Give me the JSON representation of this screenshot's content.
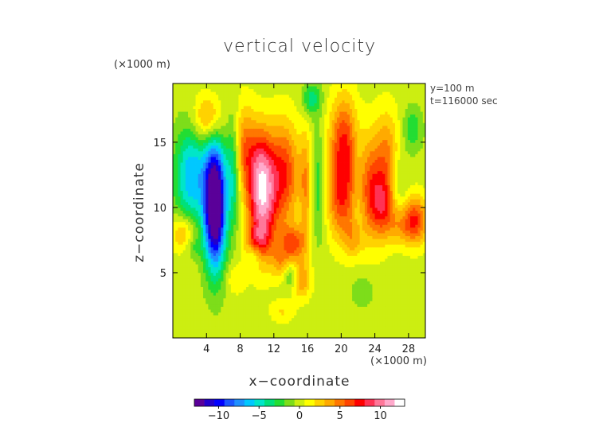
{
  "chart_data": {
    "type": "heatmap",
    "title": "vertical velocity",
    "xlabel": "x−coordinate",
    "ylabel": "z−coordinate",
    "x_unit": "(×1000 m)",
    "y_unit": "(×1000 m)",
    "info": [
      "y=100  m",
      "t=116000  sec"
    ],
    "xlim": [
      0,
      30
    ],
    "ylim": [
      0,
      19.5
    ],
    "xticks": [
      4,
      8,
      12,
      16,
      20,
      24,
      28
    ],
    "yticks": [
      5,
      10,
      15
    ],
    "colorbar": {
      "range": [
        -13,
        13
      ],
      "ticks": [
        -10,
        -5,
        0,
        5,
        10
      ],
      "tick_labels": [
        "−10",
        "−5",
        "0",
        "5",
        "10"
      ],
      "colors": [
        "#5a0099",
        "#2200cc",
        "#0000ff",
        "#1a55ff",
        "#1e90ff",
        "#00c8ff",
        "#00e6c8",
        "#00e07a",
        "#22dd33",
        "#7ddd1a",
        "#ccee11",
        "#ffff00",
        "#ffd200",
        "#ffaa00",
        "#ff7700",
        "#ff4400",
        "#ff0000",
        "#ff3355",
        "#ff7799",
        "#ffaacc",
        "#ffffff"
      ]
    },
    "features": [
      {
        "x": 5.0,
        "z": 10.2,
        "sx": 0.9,
        "sz": 3.3,
        "w": -17
      },
      {
        "x": 2.2,
        "z": 12.4,
        "sx": 1.4,
        "sz": 2.6,
        "w": -7
      },
      {
        "x": 7.2,
        "z": 12.8,
        "sx": 0.6,
        "sz": 3.0,
        "w": -5
      },
      {
        "x": 1.2,
        "z": 8.0,
        "sx": 1.0,
        "sz": 1.0,
        "w": 4
      },
      {
        "x": 4.2,
        "z": 16.8,
        "sx": 1.2,
        "sz": 1.3,
        "w": 5
      },
      {
        "x": 8.4,
        "z": 14.5,
        "sx": 0.9,
        "sz": 2.4,
        "w": 5
      },
      {
        "x": 10.6,
        "z": 10.2,
        "sx": 1.2,
        "sz": 2.8,
        "w": 10
      },
      {
        "x": 10.4,
        "z": 13.5,
        "sx": 1.0,
        "sz": 2.2,
        "w": 5
      },
      {
        "x": 13.2,
        "z": 12.6,
        "sx": 1.3,
        "sz": 2.8,
        "w": 7
      },
      {
        "x": 10.0,
        "z": 7.2,
        "sx": 1.0,
        "sz": 0.9,
        "w": 5
      },
      {
        "x": 14.3,
        "z": 7.2,
        "sx": 1.1,
        "sz": 1.0,
        "w": 6
      },
      {
        "x": 15.3,
        "z": 4.4,
        "sx": 0.8,
        "sz": 1.0,
        "w": 4
      },
      {
        "x": 12.7,
        "z": 5.8,
        "sx": 0.7,
        "sz": 0.9,
        "w": 3
      },
      {
        "x": 16.5,
        "z": 18.3,
        "sx": 0.8,
        "sz": 0.9,
        "w": -4
      },
      {
        "x": 17.3,
        "z": 11.5,
        "sx": 0.6,
        "sz": 3.0,
        "w": -3
      },
      {
        "x": 15.8,
        "z": 11.6,
        "sx": 0.5,
        "sz": 3.0,
        "w": 4
      },
      {
        "x": 20.3,
        "z": 15.0,
        "sx": 1.2,
        "sz": 2.5,
        "w": 7
      },
      {
        "x": 20.0,
        "z": 10.5,
        "sx": 1.2,
        "sz": 2.2,
        "w": 6
      },
      {
        "x": 23.5,
        "z": 11.5,
        "sx": 1.3,
        "sz": 2.8,
        "w": 6
      },
      {
        "x": 25.5,
        "z": 14.0,
        "sx": 1.0,
        "sz": 2.5,
        "w": 4
      },
      {
        "x": 25.0,
        "z": 10.0,
        "sx": 1.0,
        "sz": 1.6,
        "w": 5
      },
      {
        "x": 28.8,
        "z": 9.0,
        "sx": 1.0,
        "sz": 1.3,
        "w": 7
      },
      {
        "x": 27.0,
        "z": 8.5,
        "sx": 1.0,
        "sz": 1.0,
        "w": 3
      },
      {
        "x": 22.0,
        "z": 12.0,
        "sx": 0.6,
        "sz": 3.0,
        "w": -2
      },
      {
        "x": 21.5,
        "z": 7.5,
        "sx": 0.8,
        "sz": 1.0,
        "w": 3
      },
      {
        "x": 28.5,
        "z": 16.0,
        "sx": 0.8,
        "sz": 1.2,
        "w": -3
      },
      {
        "x": 26.8,
        "z": 12.0,
        "sx": 0.7,
        "sz": 1.5,
        "w": -2
      },
      {
        "x": 9.8,
        "z": 6.5,
        "sx": 0.7,
        "sz": 0.7,
        "w": -4
      },
      {
        "x": 7.5,
        "z": 4.5,
        "sx": 0.8,
        "sz": 0.8,
        "w": 2
      },
      {
        "x": 13.0,
        "z": 2.0,
        "sx": 1.0,
        "sz": 0.6,
        "w": 2
      },
      {
        "x": 22.5,
        "z": 3.5,
        "sx": 0.9,
        "sz": 0.8,
        "w": -2
      },
      {
        "x": 14.0,
        "z": 4.7,
        "sx": 0.5,
        "sz": 0.6,
        "w": -3
      },
      {
        "x": 2.5,
        "z": 7.0,
        "sx": 0.7,
        "sz": 0.6,
        "w": -2
      }
    ]
  }
}
